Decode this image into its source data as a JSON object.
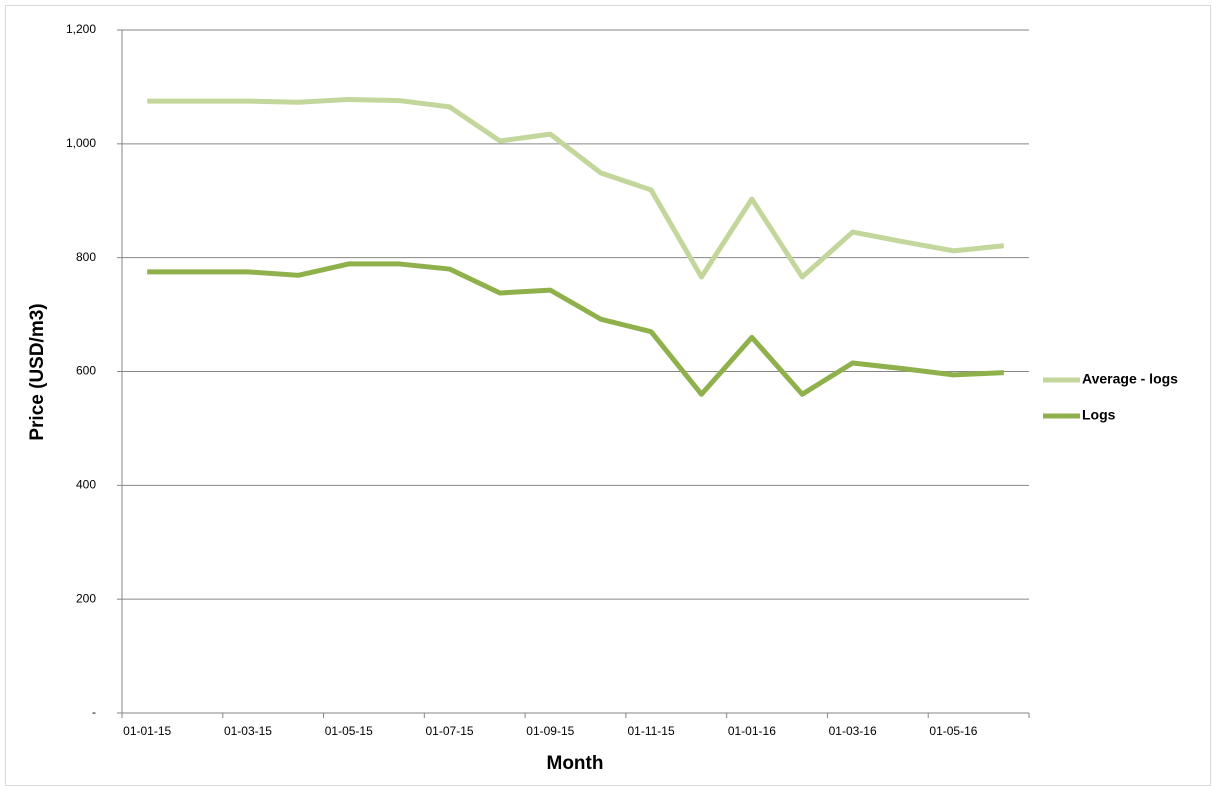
{
  "chart_data": {
    "type": "line",
    "y_label": "Price (USD/m3)",
    "x_label": "Month",
    "categories": [
      "01-01-15",
      null,
      "01-03-15",
      null,
      "01-05-15",
      null,
      "01-07-15",
      null,
      "01-09-15",
      null,
      "01-11-15",
      null,
      "01-01-16",
      null,
      "01-03-16",
      null,
      "01-05-16",
      null
    ],
    "series": [
      {
        "name": "Average - logs",
        "color": "#c3d69b",
        "values": [
          1075,
          1075,
          1075,
          1073,
          1078,
          1076,
          1065,
          1005,
          1017,
          949,
          919,
          766,
          903,
          766,
          845,
          828,
          812,
          821
        ]
      },
      {
        "name": "Logs",
        "color": "#8fb14c",
        "values": [
          775,
          775,
          775,
          769,
          789,
          789,
          780,
          738,
          743,
          692,
          670,
          560,
          660,
          560,
          615,
          605,
          594,
          598
        ]
      }
    ],
    "ylim": [
      0,
      1200
    ],
    "yticks": [
      {
        "value": 0,
        "label": "-"
      },
      200,
      400,
      600,
      800,
      {
        "value": 1000,
        "label": "1,000"
      },
      {
        "value": 1200,
        "label": "1,200"
      }
    ],
    "grid": true,
    "legend": "right"
  }
}
